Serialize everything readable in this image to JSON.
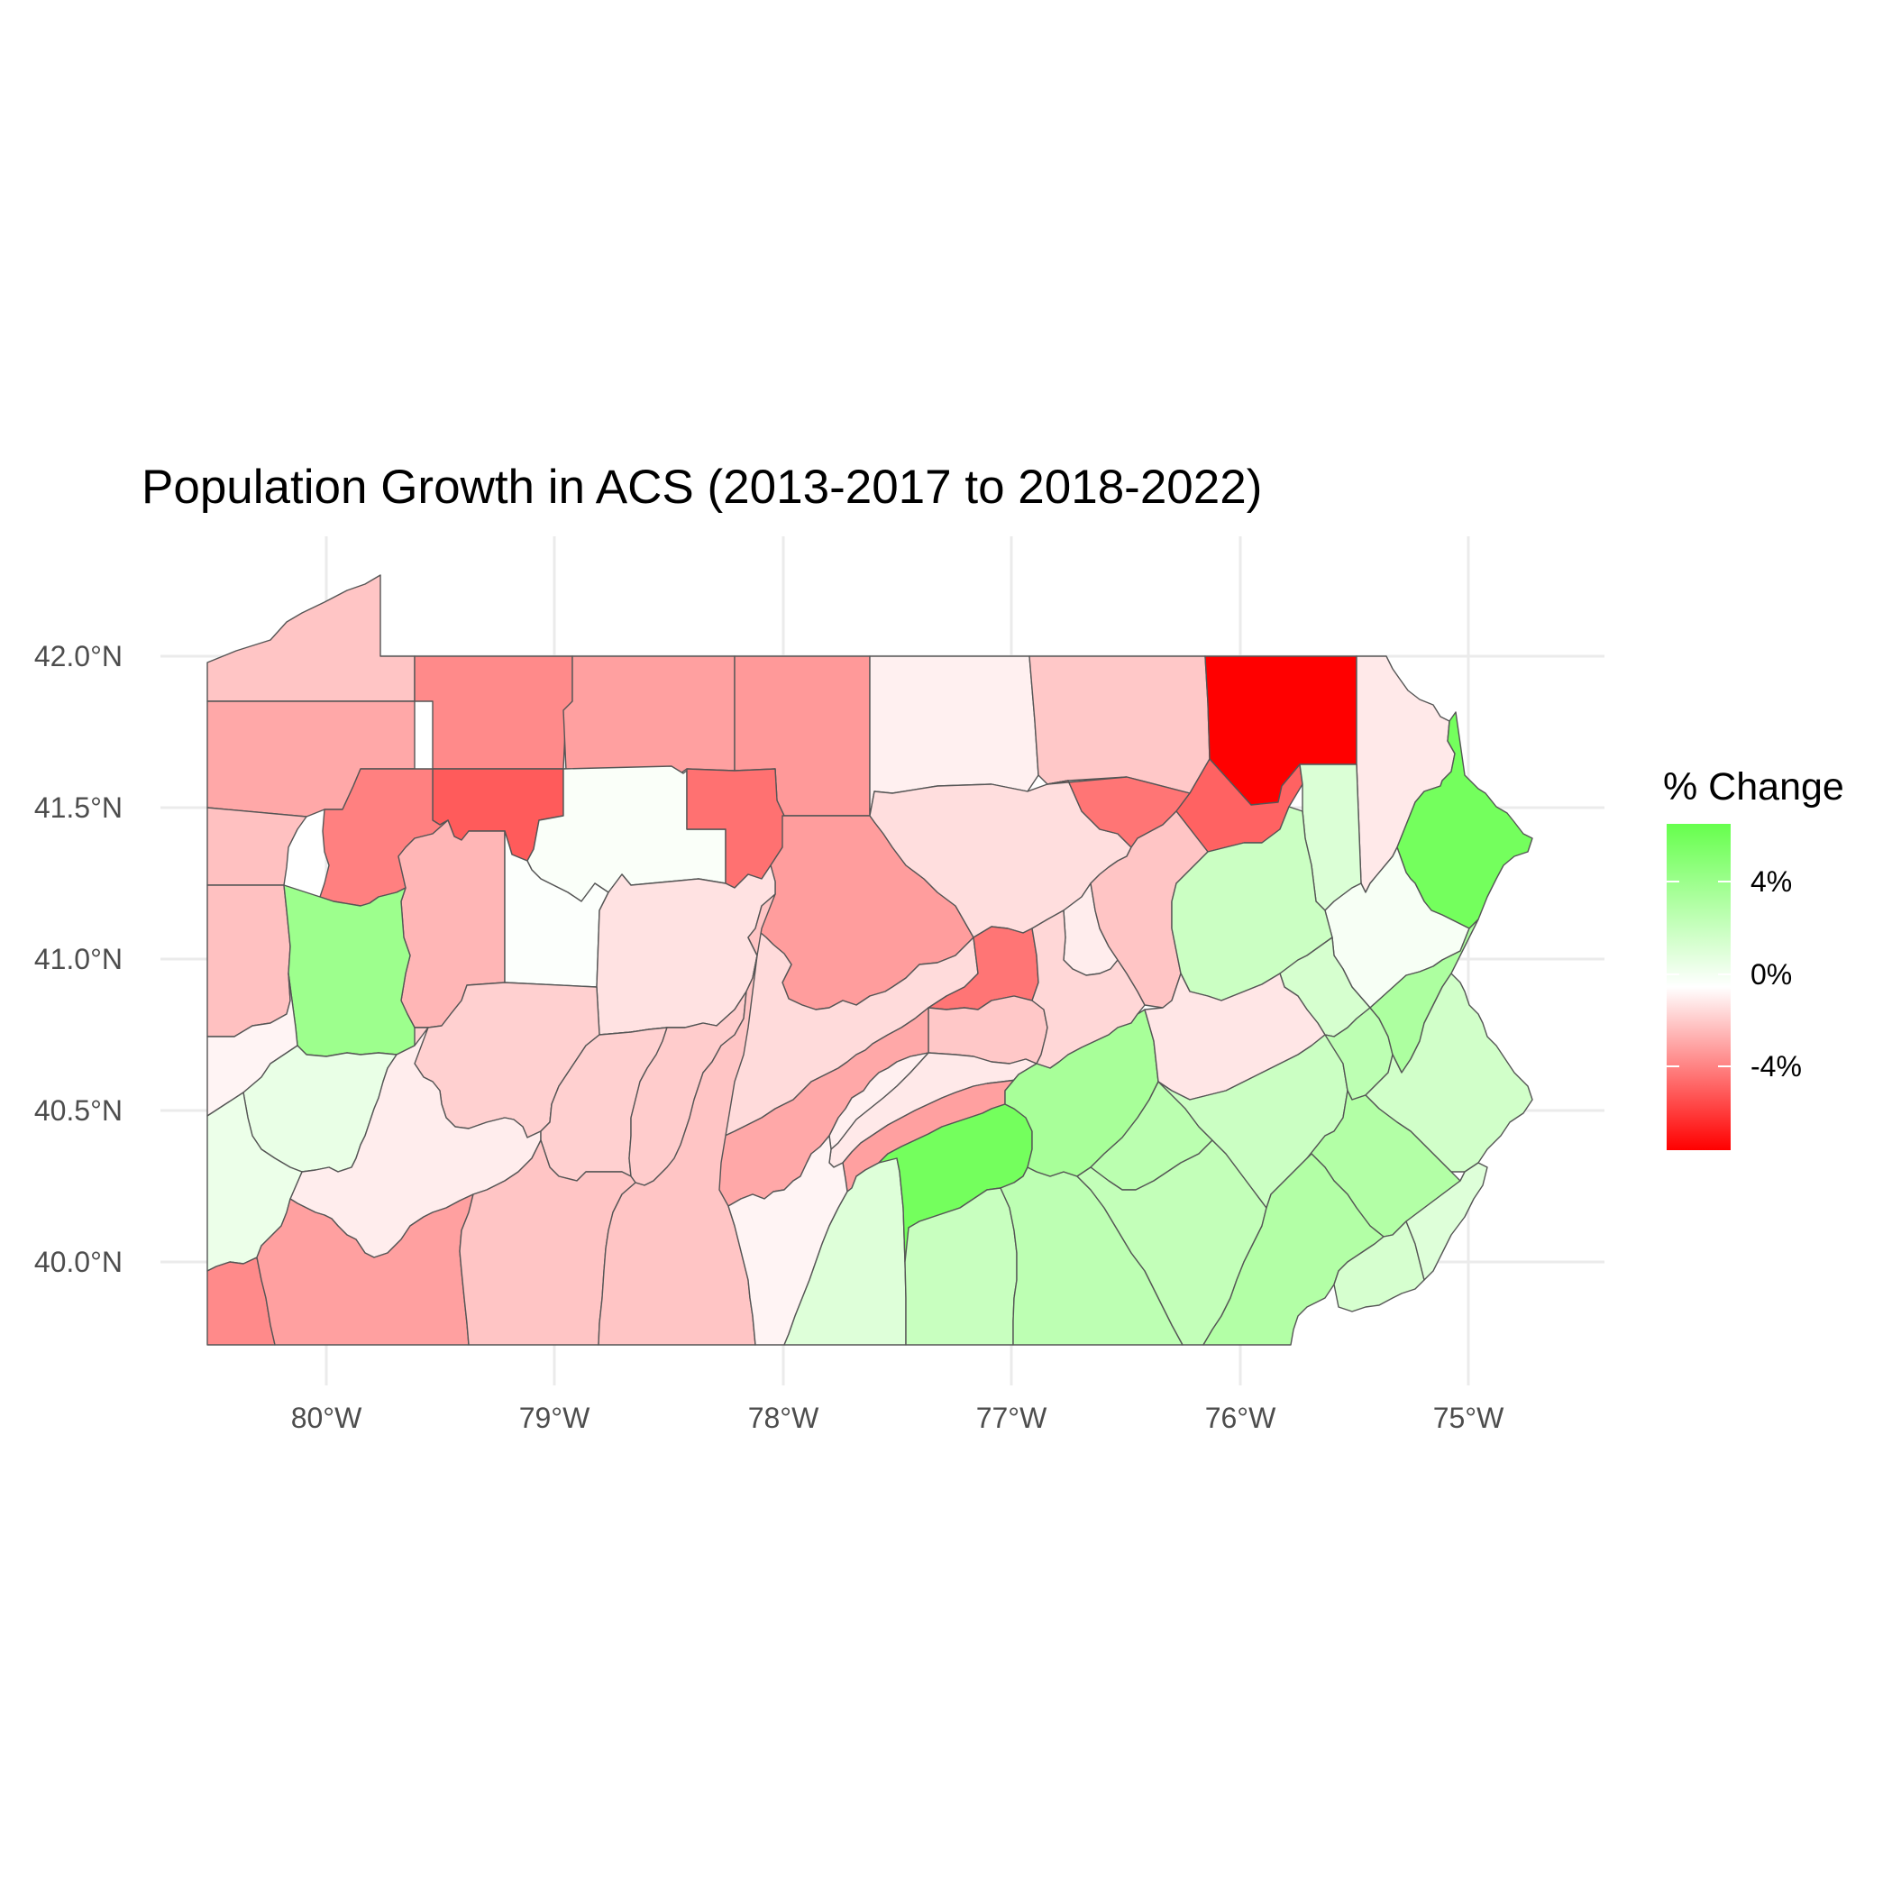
{
  "title": "Population Growth in ACS (2013-2017 to 2018-2022)",
  "axes": {
    "x_ticks": [
      "80°W",
      "79°W",
      "78°W",
      "77°W",
      "76°W",
      "75°W"
    ],
    "y_ticks": [
      "42.0°N",
      "41.5°N",
      "41.0°N",
      "40.5°N",
      "40.0°N"
    ]
  },
  "legend": {
    "title": "% Change",
    "labels": [
      "4%",
      "0%",
      "-4%"
    ],
    "low_color": "#ff0000",
    "mid_color": "#ffffff",
    "high_color": "#66ff4d"
  },
  "map": {
    "region": "Pennsylvania",
    "unit": "county",
    "projection": "lon/lat",
    "counties": [
      {
        "name": "Erie",
        "change": -1.6
      },
      {
        "name": "Warren",
        "change": -3.2
      },
      {
        "name": "McKean",
        "change": -2.6
      },
      {
        "name": "Potter",
        "change": -2.8
      },
      {
        "name": "Tioga",
        "change": -0.4
      },
      {
        "name": "Bradford",
        "change": -1.5
      },
      {
        "name": "Susquehanna",
        "change": -7.0
      },
      {
        "name": "Wayne",
        "change": -0.6
      },
      {
        "name": "Crawford",
        "change": -2.4
      },
      {
        "name": "Mercer",
        "change": -1.7
      },
      {
        "name": "Venango",
        "change": -3.5
      },
      {
        "name": "Forest",
        "change": -4.5
      },
      {
        "name": "Elk",
        "change": 0.2
      },
      {
        "name": "Cameron",
        "change": -3.9
      },
      {
        "name": "Clinton",
        "change": -2.7
      },
      {
        "name": "Lycoming",
        "change": -0.9
      },
      {
        "name": "Sullivan",
        "change": -3.8
      },
      {
        "name": "Wyoming",
        "change": -4.3
      },
      {
        "name": "Lackawanna",
        "change": 1.3
      },
      {
        "name": "Luzerne",
        "change": 1.9
      },
      {
        "name": "Pike",
        "change": 5.1
      },
      {
        "name": "Monroe",
        "change": 0.3
      },
      {
        "name": "Lawrence",
        "change": -1.7
      },
      {
        "name": "Butler",
        "change": 3.6
      },
      {
        "name": "Clarion",
        "change": -2.0
      },
      {
        "name": "Jefferson",
        "change": 0.1
      },
      {
        "name": "Clearfield",
        "change": -0.8
      },
      {
        "name": "Centre",
        "change": -1.0
      },
      {
        "name": "Union",
        "change": -3.8
      },
      {
        "name": "Montour",
        "change": -0.5
      },
      {
        "name": "Columbia",
        "change": -1.6
      },
      {
        "name": "Carbon",
        "change": 1.5
      },
      {
        "name": "Northampton",
        "change": 3.0
      },
      {
        "name": "Beaver",
        "change": -0.3
      },
      {
        "name": "Allegheny",
        "change": 0.8
      },
      {
        "name": "Armstrong",
        "change": -1.3
      },
      {
        "name": "Indiana",
        "change": -2.6
      },
      {
        "name": "Cambria",
        "change": -1.3
      },
      {
        "name": "Blair",
        "change": -1.4
      },
      {
        "name": "Huntingdon",
        "change": -2.4
      },
      {
        "name": "Mifflin",
        "change": -0.4
      },
      {
        "name": "Juniata",
        "change": -0.6
      },
      {
        "name": "Snyder",
        "change": -1.5
      },
      {
        "name": "Northumberland",
        "change": -1.1
      },
      {
        "name": "Schuylkill",
        "change": -0.7
      },
      {
        "name": "Lehigh",
        "change": 2.4
      },
      {
        "name": "Bucks",
        "change": 1.7
      },
      {
        "name": "Washington",
        "change": 0.7
      },
      {
        "name": "Westmoreland",
        "change": -0.5
      },
      {
        "name": "Perry",
        "change": -2.6
      },
      {
        "name": "Dauphin",
        "change": 3.2
      },
      {
        "name": "Lebanon",
        "change": 2.5
      },
      {
        "name": "Berks",
        "change": 1.9
      },
      {
        "name": "Montgomery",
        "change": 2.8
      },
      {
        "name": "Philadelphia",
        "change": 1.2
      },
      {
        "name": "Greene",
        "change": -3.2
      },
      {
        "name": "Fayette",
        "change": -2.6
      },
      {
        "name": "Somerset",
        "change": -1.6
      },
      {
        "name": "Bedford",
        "change": -1.6
      },
      {
        "name": "Fulton",
        "change": -0.3
      },
      {
        "name": "Franklin",
        "change": 1.2
      },
      {
        "name": "Cumberland",
        "change": 5.1
      },
      {
        "name": "Adams",
        "change": 2.0
      },
      {
        "name": "York",
        "change": 2.4
      },
      {
        "name": "Lancaster",
        "change": 2.2
      },
      {
        "name": "Chester",
        "change": 2.8
      },
      {
        "name": "Delaware",
        "change": 1.5
      }
    ]
  }
}
